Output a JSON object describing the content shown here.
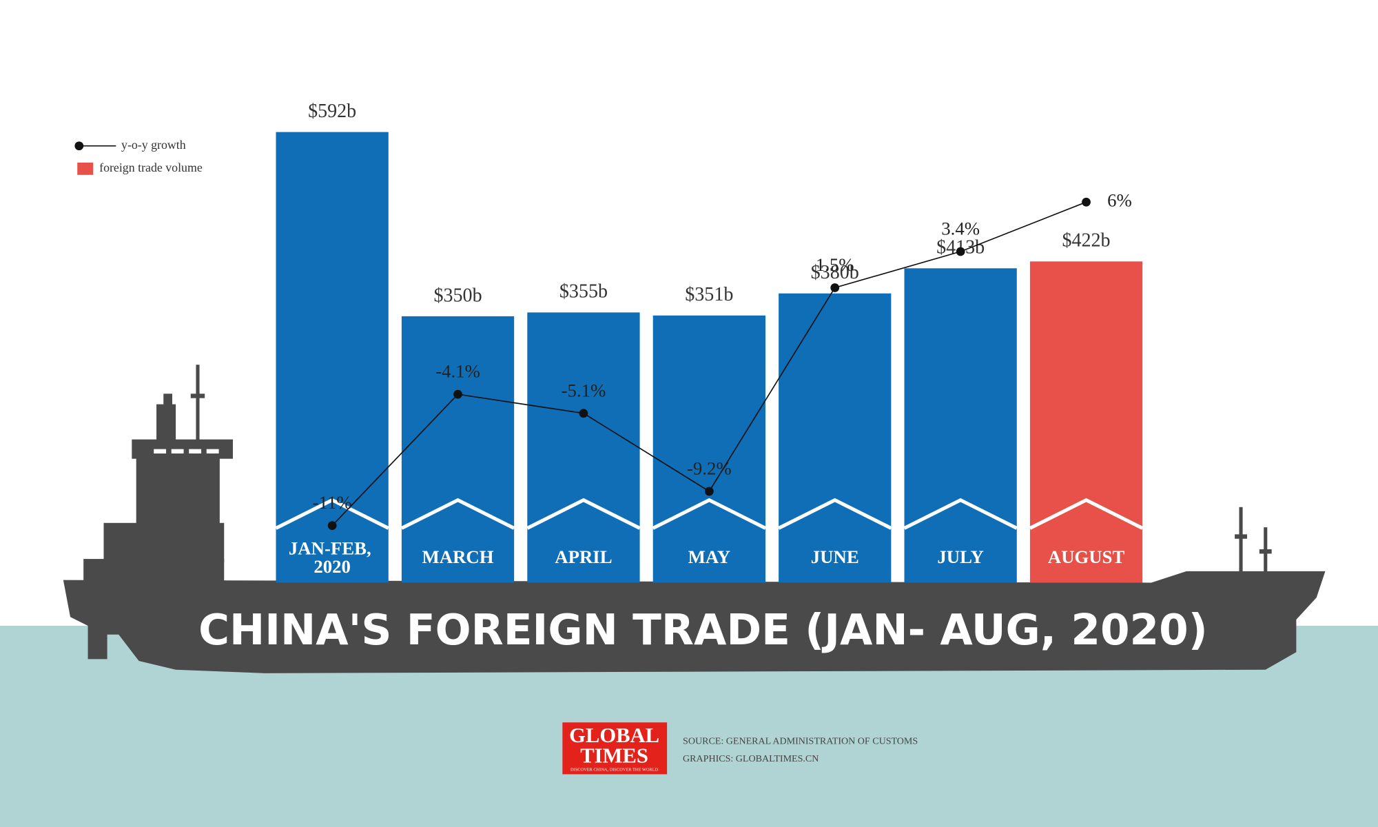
{
  "chart_data": {
    "type": "bar",
    "title": "CHINA'S FOREIGN TRADE (JAN- AUG, 2020)",
    "categories": [
      "JAN-FEB, 2020",
      "MARCH",
      "APRIL",
      "MAY",
      "JUNE",
      "JULY",
      "AUGUST"
    ],
    "series": [
      {
        "name": "foreign trade volume",
        "type": "bar",
        "color": "#e8504a",
        "colors": [
          "#0f6eb5",
          "#0f6eb5",
          "#0f6eb5",
          "#0f6eb5",
          "#0f6eb5",
          "#0f6eb5",
          "#e8504a"
        ],
        "values": [
          592,
          350,
          355,
          351,
          380,
          413,
          422
        ],
        "value_labels": [
          "$592b",
          "$350b",
          "$355b",
          "$351b",
          "$380b",
          "$413b",
          "$422b"
        ]
      },
      {
        "name": "y-o-y growth",
        "type": "line",
        "axis": "y2",
        "color": "#111111",
        "values": [
          -11,
          -4.1,
          -5.1,
          -9.2,
          1.5,
          3.4,
          6
        ],
        "value_labels": [
          "-11%",
          "-4.1%",
          "-5.1%",
          "-9.2%",
          "1.5%",
          "3.4%",
          "6%"
        ]
      }
    ],
    "ylim": [
      0,
      650
    ],
    "y2lim": [
      -14,
      12
    ],
    "legend": "top-left",
    "source": "SOURCE: GENERAL ADMINISTRATION OF CUSTOMS",
    "credit": "GRAPHICS: GLOBALTIMES.CN",
    "logo": {
      "line1": "GLOBAL",
      "line2": "TIMES",
      "tagline": "DISCOVER CHINA, DISCOVER THE WORLD"
    }
  }
}
